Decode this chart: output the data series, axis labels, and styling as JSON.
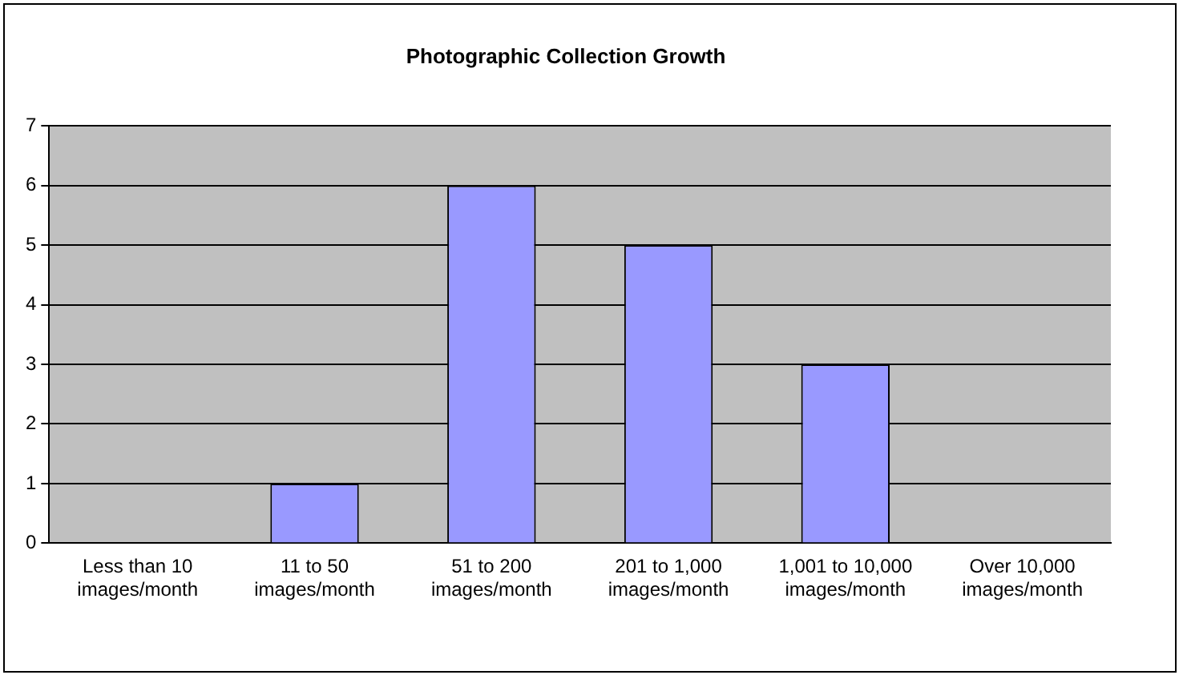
{
  "chart_data": {
    "type": "bar",
    "title": "Photographic Collection Growth",
    "categories": [
      "Less than 10 images/month",
      "11 to 50 images/month",
      "51 to 200 images/month",
      "201 to 1,000 images/month",
      "1,001 to 10,000 images/month",
      "Over 10,000 images/month"
    ],
    "values": [
      0,
      1,
      6,
      5,
      3,
      0
    ],
    "color": "#9999ff",
    "ylim": [
      0,
      7
    ],
    "yticks": [
      0,
      1,
      2,
      3,
      4,
      5,
      6,
      7
    ],
    "grid": "y",
    "legend": false
  }
}
